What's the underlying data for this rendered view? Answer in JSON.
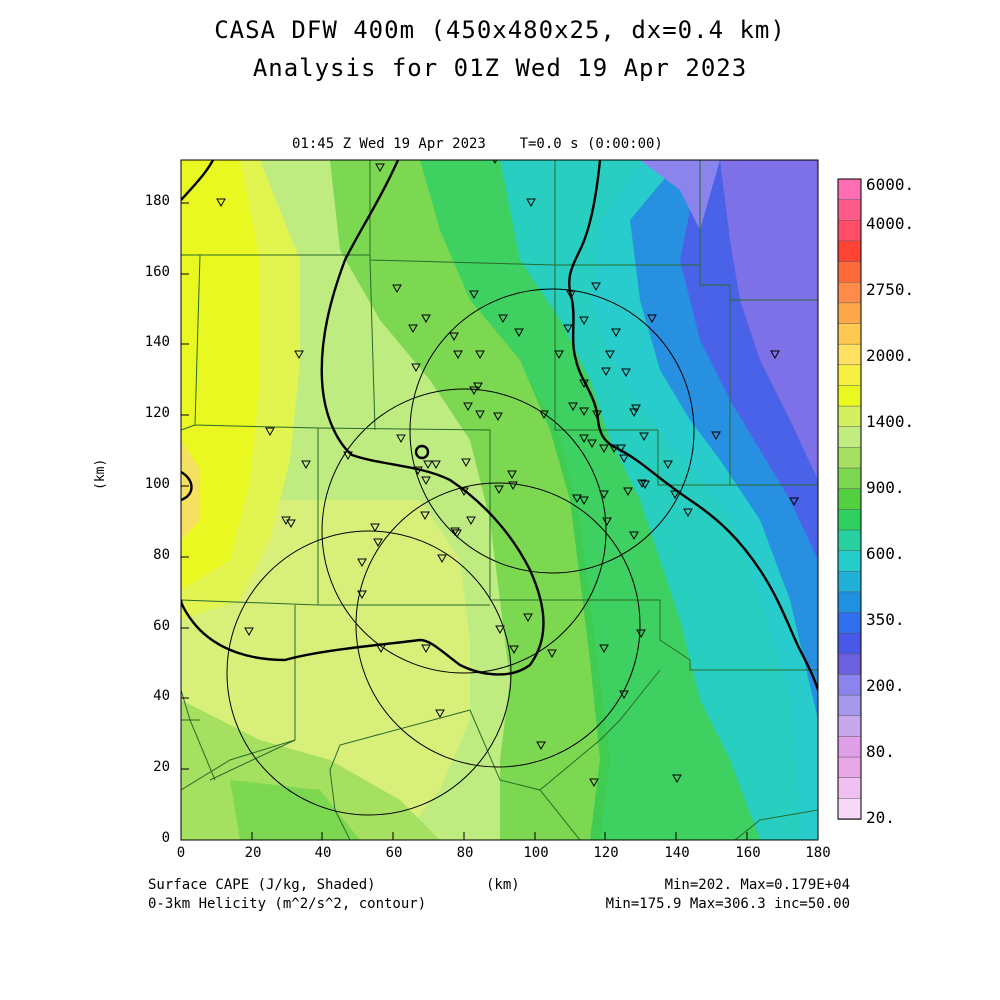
{
  "titles": {
    "line1": "CASA DFW 400m (450x480x25, dx=0.4 km)",
    "line2": "Analysis for 01Z Wed 19 Apr 2023"
  },
  "plot": {
    "valid_time": "01:45 Z Wed 19 Apr 2023    T=0.0 s (0:00:00)",
    "x_axis_label": "(km)",
    "y_axis_label": "(km)",
    "x_ticks": [
      "0",
      "20",
      "40",
      "60",
      "80",
      "100",
      "120",
      "140",
      "160",
      "180"
    ],
    "y_ticks": [
      "0",
      "20",
      "40",
      "60",
      "80",
      "100",
      "120",
      "140",
      "160",
      "180"
    ]
  },
  "footer": {
    "field1": "Surface CAPE (J/kg, Shaded)",
    "field2": "0-3km Helicity (m^2/s^2, contour)",
    "km": "(km)",
    "stats1": "Min=202. Max=0.179E+04",
    "stats2": "Min=175.9 Max=306.3 inc=50.00"
  },
  "colorbar": {
    "labels": [
      "6000.",
      "4000.",
      "2750.",
      "2000.",
      "1400.",
      "900.",
      "600.",
      "350.",
      "200.",
      "80.",
      "20."
    ],
    "colors": [
      "#ff6eb4",
      "#ff5a8a",
      "#ff4d6a",
      "#ff4433",
      "#ff6a3a",
      "#ff8c4a",
      "#ffa84a",
      "#ffc850",
      "#ffe060",
      "#f8f040",
      "#e8f820",
      "#d4f060",
      "#c0ec80",
      "#a6e060",
      "#7cd850",
      "#52d040",
      "#30d060",
      "#28d0a0",
      "#24cccc",
      "#20b0d8",
      "#2090e0",
      "#3070f0",
      "#4858e8",
      "#6a60e0",
      "#8a84ec",
      "#a898ec",
      "#c8a8ec",
      "#e0a0e8",
      "#e8a8e8",
      "#f0c0f0",
      "#f8d8f8"
    ],
    "accent_contour": "#000000"
  },
  "radars": [
    {
      "name": "radar-1",
      "x_km": 107,
      "y_km": 115,
      "r_km": 40
    },
    {
      "name": "radar-2",
      "x_km": 80,
      "y_km": 88,
      "r_km": 40
    },
    {
      "name": "radar-3",
      "x_km": 95,
      "y_km": 62,
      "r_km": 40
    },
    {
      "name": "radar-4",
      "x_km": 53,
      "y_km": 48,
      "r_km": 40
    }
  ]
}
